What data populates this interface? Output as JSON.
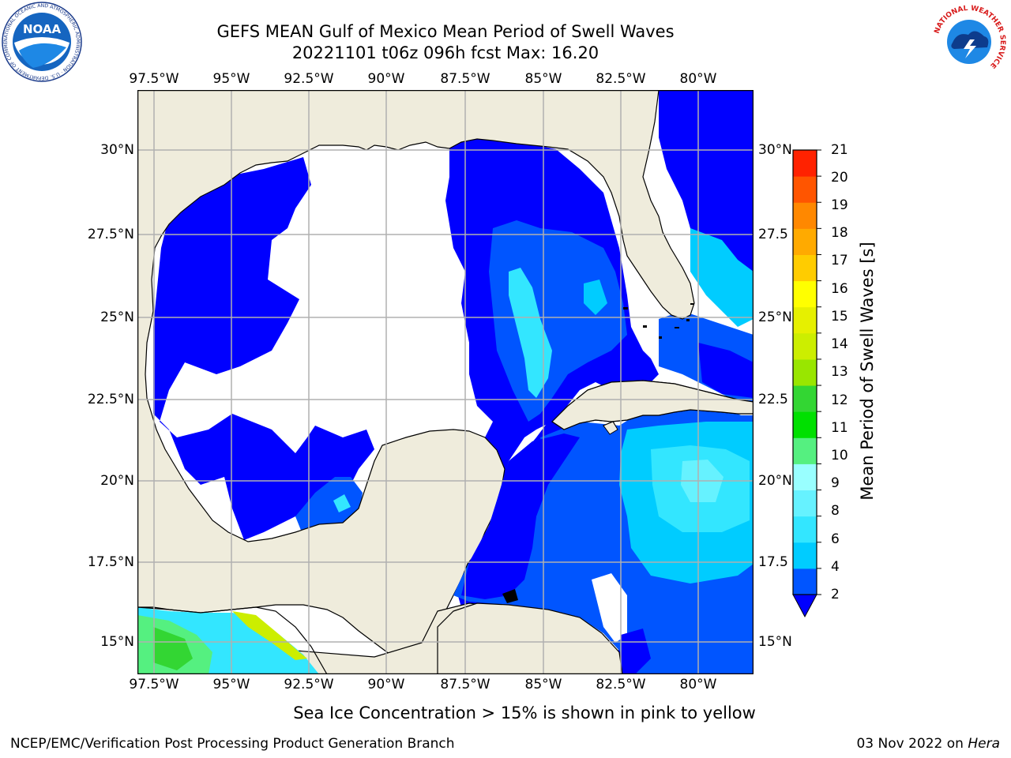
{
  "title": {
    "line1": "GEFS MEAN Gulf of Mexico Mean Period of Swell Waves",
    "line2": "20221101 t06z 096h fcst   Max: 16.20"
  },
  "map": {
    "lon_labels": [
      "97.5°W",
      "95°W",
      "92.5°W",
      "90°W",
      "87.5°W",
      "85°W",
      "82.5°W",
      "80°W"
    ],
    "lat_labels_left": [
      "30°N",
      "27.5°N",
      "25°N",
      "22.5°N",
      "20°N",
      "17.5°N",
      "15°N"
    ],
    "lat_labels_right": [
      "30°N",
      "27.5",
      "25°N",
      "22.5",
      "20°N",
      "17.5",
      "15°N"
    ],
    "land_color": "#efecdc",
    "gridline_color": "#b0b0b0"
  },
  "colorbar": {
    "label": "Mean Period of Swell Waves [s]",
    "ticks": [
      "2",
      "4",
      "6",
      "8",
      "9",
      "10",
      "11",
      "12",
      "13",
      "14",
      "15",
      "16",
      "17",
      "18",
      "19",
      "20",
      "21"
    ],
    "colors": [
      "#0055ff",
      "#00ccff",
      "#33e6ff",
      "#66f2ff",
      "#99ffff",
      "#55f080",
      "#00e000",
      "#33d633",
      "#99e600",
      "#ccee00",
      "#e6f000",
      "#ffff00",
      "#ffcc00",
      "#ffaa00",
      "#ff8800",
      "#ff5500",
      "#ff2200",
      "#ff0000"
    ],
    "under_color": "#0000ff"
  },
  "note": "Sea Ice Concentration > 15% is shown in pink to yellow",
  "footer": {
    "left": "NCEP/EMC/Verification Post Processing Product Generation Branch",
    "right_date": "03 Nov 2022 on",
    "right_machine": "Hera"
  },
  "logos": {
    "noaa_text": "NOAA",
    "noaa_ring": "NATIONAL OCEANIC AND ATMOSPHERIC ADMINISTRATION · U.S. DEPARTMENT OF COMMERCE",
    "nws_ring": "NATIONAL WEATHER SERVICE"
  }
}
